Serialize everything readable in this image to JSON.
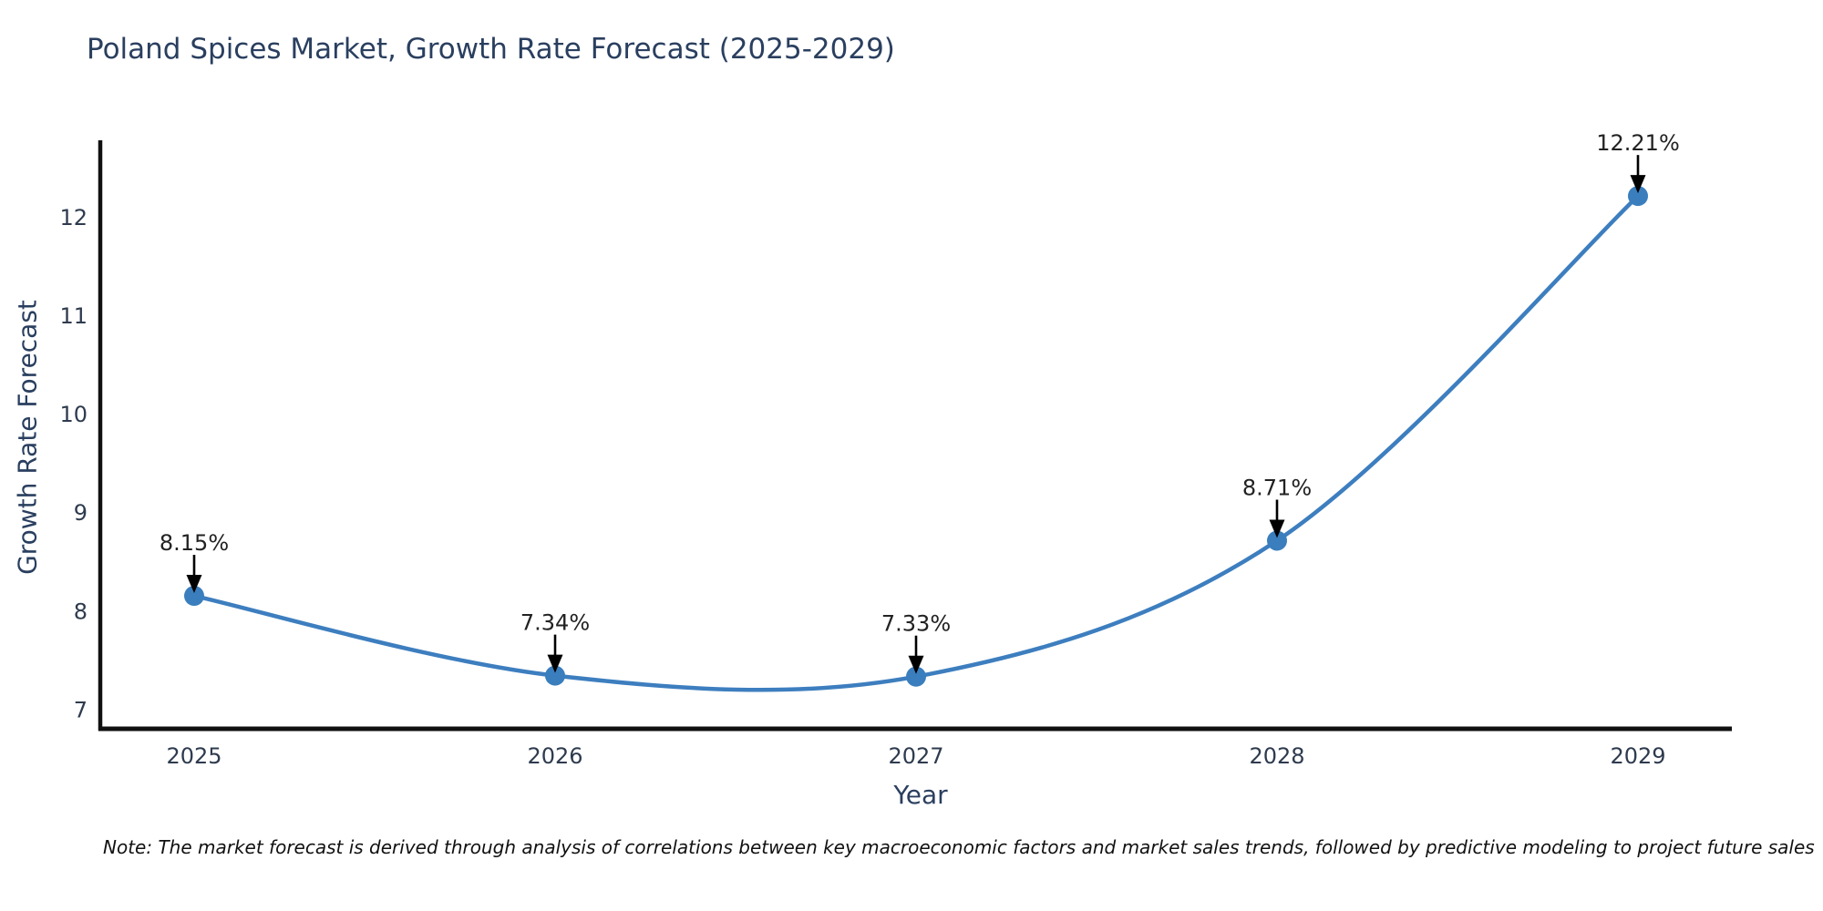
{
  "title": "Poland Spices Market, Growth Rate Forecast (2025-2029)",
  "note": "Note: The market forecast is derived through analysis of correlations between key macroeconomic factors and market sales trends, followed by predictive modeling to project future sales",
  "chart_data": {
    "type": "line",
    "title": "Poland Spices Market, Growth Rate Forecast (2025-2029)",
    "x": [
      "2025",
      "2026",
      "2027",
      "2028",
      "2029"
    ],
    "series": [
      {
        "name": "Growth Rate Forecast",
        "values": [
          8.15,
          7.34,
          7.33,
          8.71,
          12.21
        ]
      }
    ],
    "point_labels": [
      "8.15%",
      "7.34%",
      "7.33%",
      "8.71%",
      "12.21%"
    ],
    "xlabel": "Year",
    "ylabel": "Growth Rate Forecast",
    "yticks": [
      7,
      8,
      9,
      10,
      11,
      12
    ],
    "ylim": [
      6.8,
      12.72
    ],
    "grid": false,
    "legend": "none",
    "curve": "spline",
    "annotations": "black arrows pointing down to each data point"
  },
  "colors": {
    "line": "#3d7ebf",
    "marker": "#3a7ebd",
    "axis_spine": "#111111",
    "title_text": "#2a3f5f",
    "tick_text": "#2e3b4e",
    "annotation_text": "#222222",
    "annotation_arrow": "#000000",
    "background": "#ffffff"
  }
}
